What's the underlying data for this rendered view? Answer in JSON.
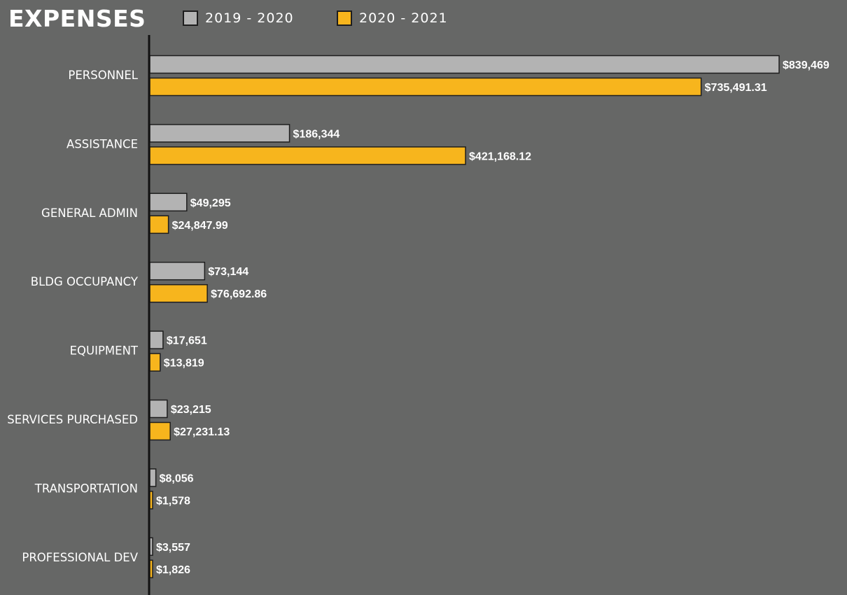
{
  "chart_data": {
    "type": "bar",
    "orientation": "horizontal",
    "title": "EXPENSES",
    "categories": [
      "PERSONNEL",
      "ASSISTANCE",
      "GENERAL ADMIN",
      "BLDG OCCUPANCY",
      "EQUIPMENT",
      "SERVICES PURCHASED",
      "TRANSPORTATION",
      "PROFESSIONAL DEV"
    ],
    "series": [
      {
        "name": "2019 - 2020",
        "color": "#b3b3b3",
        "values": [
          839469,
          186344,
          49295,
          73144,
          17651,
          23215,
          8056,
          3557
        ],
        "labels": [
          "$839,469",
          "$186,344",
          "$49,295",
          "$73,144",
          "$17,651",
          "$23,215",
          "$8,056",
          "$3,557"
        ]
      },
      {
        "name": "2020 - 2021",
        "color": "#f7b51d",
        "values": [
          735491.31,
          421168.12,
          24847.99,
          76692.86,
          13819,
          27231.13,
          1578,
          1826
        ],
        "labels": [
          "$735,491.31",
          "$421,168.12",
          "$24,847.99",
          "$76,692.86",
          "$13,819",
          "$27,231.13",
          "$1,578",
          "$1,826"
        ]
      }
    ],
    "xlim": [
      0,
      839469
    ],
    "xlabel": "",
    "ylabel": "",
    "grid": false,
    "legend_position": "top"
  },
  "colors": {
    "background": "#666766",
    "axis": "#111111",
    "bar_stroke": "#1e1e1e",
    "text": "#ffffff"
  }
}
